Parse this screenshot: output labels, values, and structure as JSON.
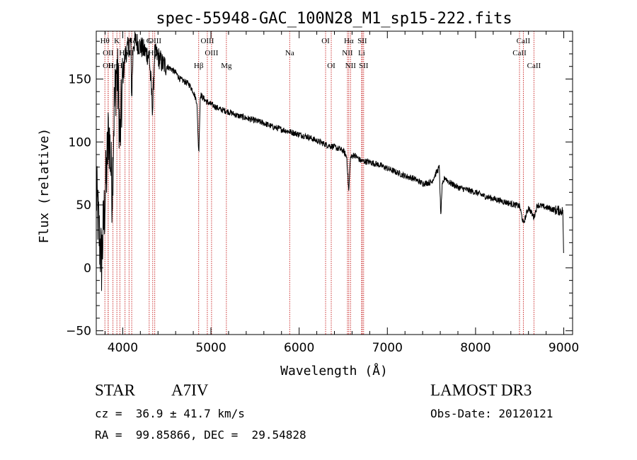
{
  "chart_data": {
    "type": "line",
    "title": "spec-55948-GAC_100N28_M1_sp15-222.fits",
    "xlabel": "Wavelength (Å)",
    "ylabel": "Flux (relative)",
    "xlim": [
      3700,
      9100
    ],
    "ylim": [
      -53,
      188
    ],
    "x_ticks": [
      4000,
      5000,
      6000,
      7000,
      8000,
      9000
    ],
    "x_tick_labels": [
      "4000",
      "5000",
      "6000",
      "7000",
      "8000",
      "9000"
    ],
    "y_ticks": [
      -50,
      0,
      50,
      100,
      150
    ],
    "y_tick_labels": [
      "−50",
      "0",
      "50",
      "100",
      "150"
    ],
    "grid": false,
    "series": [
      {
        "name": "spectrum",
        "anchors_x": [
          3700,
          3720,
          3740,
          3760,
          3780,
          3800,
          3820,
          3840,
          3860,
          3880,
          3900,
          3930,
          3950,
          3970,
          4000,
          4030,
          4060,
          4090,
          4102,
          4120,
          4150,
          4200,
          4250,
          4300,
          4340,
          4360,
          4400,
          4450,
          4500,
          4550,
          4600,
          4650,
          4700,
          4750,
          4800,
          4840,
          4862,
          4880,
          4900,
          4950,
          5000,
          5100,
          5200,
          5300,
          5400,
          5500,
          5600,
          5700,
          5800,
          5900,
          6000,
          6100,
          6200,
          6300,
          6400,
          6500,
          6540,
          6563,
          6580,
          6620,
          6700,
          6800,
          6900,
          7000,
          7100,
          7200,
          7300,
          7400,
          7500,
          7550,
          7590,
          7605,
          7620,
          7650,
          7700,
          7800,
          7900,
          8000,
          8100,
          8200,
          8300,
          8400,
          8500,
          8542,
          8600,
          8662,
          8700,
          8800,
          8900,
          8990,
          9000
        ],
        "anchors_y": [
          60,
          40,
          20,
          5,
          30,
          55,
          80,
          110,
          90,
          60,
          120,
          160,
          140,
          100,
          150,
          170,
          175,
          180,
          135,
          178,
          180,
          176,
          172,
          168,
          125,
          170,
          168,
          162,
          160,
          158,
          155,
          150,
          148,
          146,
          140,
          132,
          90,
          138,
          136,
          132,
          130,
          126,
          124,
          121,
          119,
          117,
          115,
          112,
          110,
          108,
          106,
          104,
          101,
          98,
          96,
          93,
          88,
          60,
          87,
          90,
          85,
          84,
          82,
          79,
          76,
          73,
          71,
          67,
          68,
          75,
          80,
          40,
          64,
          72,
          68,
          64,
          62,
          60,
          57,
          55,
          53,
          51,
          49,
          35,
          48,
          40,
          50,
          48,
          46,
          45,
          0
        ],
        "noise_amp": 2.5
      }
    ],
    "lines": [
      {
        "wavelength": 3798,
        "label": "Hθ",
        "tier": 1
      },
      {
        "wavelength": 3835,
        "label": "OII",
        "tier": 2
      },
      {
        "wavelength": 3835,
        "label": "OII",
        "tier": 3
      },
      {
        "wavelength": 3889,
        "label": "Hη",
        "tier": 3
      },
      {
        "wavelength": 3934,
        "label": "K",
        "tier": 1
      },
      {
        "wavelength": 3968,
        "label": "H",
        "tier": 3
      },
      {
        "wavelength": 4026,
        "label": "HeI",
        "tier": 2
      },
      {
        "wavelength": 4072,
        "label": "SII",
        "tier": 2
      },
      {
        "wavelength": 4102,
        "label": "Hδ",
        "tier": 1
      },
      {
        "wavelength": 4300,
        "label": "G",
        "tier": 1
      },
      {
        "wavelength": 4340,
        "label": "Hγ",
        "tier": 2
      },
      {
        "wavelength": 4363,
        "label": "OIII",
        "tier": 1
      },
      {
        "wavelength": 4861,
        "label": "Hβ",
        "tier": 3
      },
      {
        "wavelength": 4959,
        "label": "OIII",
        "tier": 1
      },
      {
        "wavelength": 5007,
        "label": "OIII",
        "tier": 2
      },
      {
        "wavelength": 5175,
        "label": "Mg",
        "tier": 3
      },
      {
        "wavelength": 5893,
        "label": "Na",
        "tier": 2
      },
      {
        "wavelength": 6300,
        "label": "OI",
        "tier": 1
      },
      {
        "wavelength": 6364,
        "label": "OI",
        "tier": 3
      },
      {
        "wavelength": 6548,
        "label": "NII",
        "tier": 2
      },
      {
        "wavelength": 6563,
        "label": "Hα",
        "tier": 1
      },
      {
        "wavelength": 6583,
        "label": "NII",
        "tier": 3
      },
      {
        "wavelength": 6708,
        "label": "Li",
        "tier": 2
      },
      {
        "wavelength": 6716,
        "label": "SII",
        "tier": 1
      },
      {
        "wavelength": 6731,
        "label": "SII",
        "tier": 3
      },
      {
        "wavelength": 8498,
        "label": "CaII",
        "tier": 2
      },
      {
        "wavelength": 8542,
        "label": "CaII",
        "tier": 1
      },
      {
        "wavelength": 8662,
        "label": "CaII",
        "tier": 3
      }
    ],
    "line_color": "#cc3333"
  },
  "info": {
    "object_class": "STAR",
    "subclass": "A7IV",
    "survey": "LAMOST DR3",
    "redshift": "cz =  36.9 ± 41.7 km/s",
    "obs_date": "Obs-Date: 20120121",
    "coords": "RA =  99.85866, DEC =  29.54828"
  }
}
